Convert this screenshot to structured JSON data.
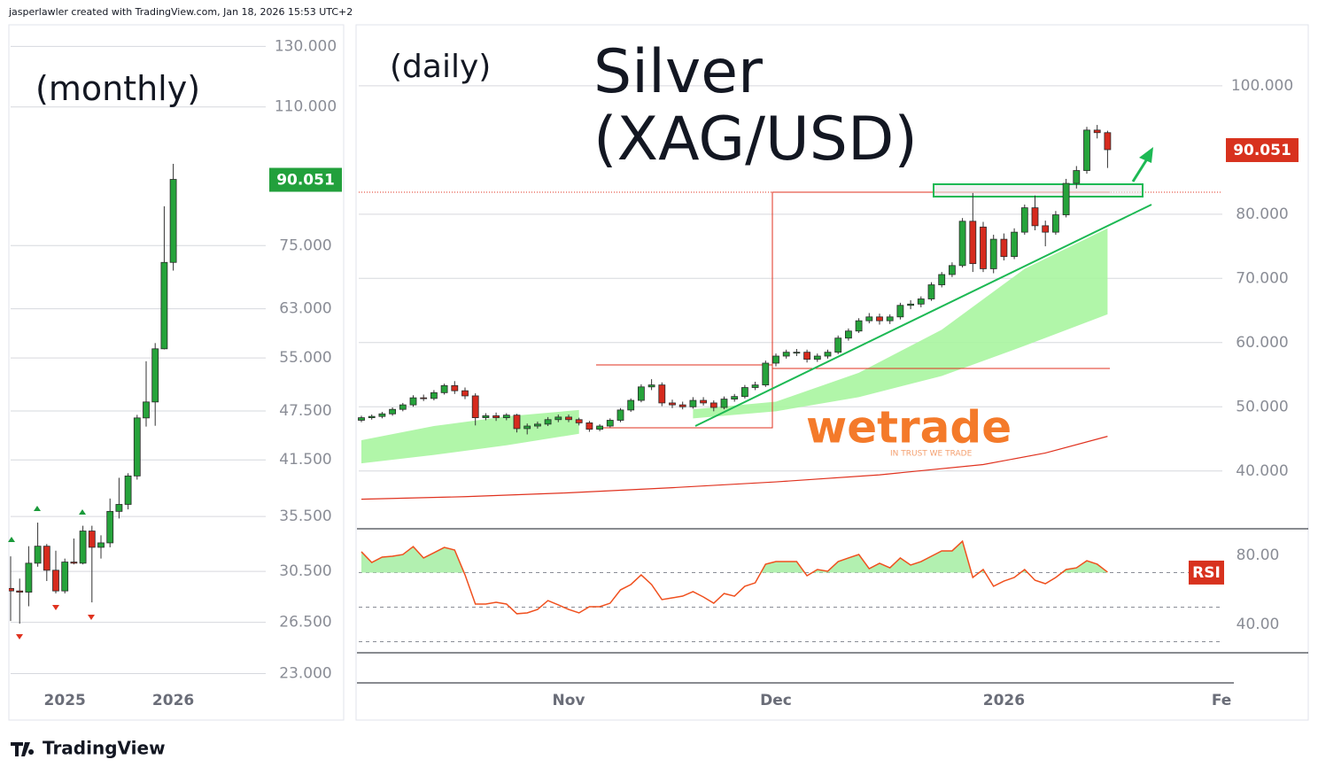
{
  "header": {
    "credit": "jasperlawler created with TradingView.com, Jan 18, 2026 15:53 UTC+2"
  },
  "footer": {
    "brand": "TradingView"
  },
  "watermark": {
    "name": "wetrade",
    "tagline": "IN TRUST WE TRADE"
  },
  "chart_data": [
    {
      "type": "candlestick",
      "title": "(monthly)",
      "log_scale": true,
      "grid": true,
      "up_color": "#26a33b",
      "down_color": "#d62b1e",
      "categories": [
        null,
        null,
        null,
        null,
        null,
        null,
        "2025",
        null,
        null,
        null,
        null,
        null,
        null,
        null,
        null,
        null,
        null,
        null,
        "2026"
      ],
      "open": [
        29.1,
        28.9,
        28.8,
        31.2,
        32.7,
        30.6,
        28.9,
        31.3,
        31.2,
        34.1,
        32.6,
        33.0,
        36.0,
        36.7,
        39.7,
        46.6,
        48.7,
        56.4,
        71.6
      ],
      "high": [
        31.8,
        29.9,
        32.7,
        34.9,
        32.9,
        32.3,
        31.6,
        33.4,
        34.6,
        34.6,
        33.7,
        37.3,
        39.5,
        40.0,
        47.0,
        54.5,
        57.3,
        83.6,
        94.0
      ],
      "low": [
        26.6,
        26.4,
        27.7,
        30.9,
        29.7,
        28.7,
        28.7,
        31.1,
        31.1,
        28.0,
        31.6,
        32.6,
        35.3,
        36.2,
        39.3,
        45.5,
        45.6,
        56.3,
        70.0
      ],
      "close": [
        28.9,
        28.8,
        31.2,
        32.7,
        30.6,
        28.9,
        31.3,
        31.2,
        34.1,
        32.6,
        33.0,
        36.0,
        36.7,
        39.7,
        46.6,
        48.7,
        56.4,
        71.6,
        90.051
      ],
      "ylim": [
        22.2,
        138
      ],
      "yticks": [
        {
          "value": 130,
          "label": "130.000"
        },
        {
          "value": 110,
          "label": "110.000"
        },
        {
          "value": 75,
          "label": "75.000"
        },
        {
          "value": 63,
          "label": "63.000"
        },
        {
          "value": 55,
          "label": "55.000"
        },
        {
          "value": 47.5,
          "label": "47.500"
        },
        {
          "value": 41.5,
          "label": "41.500"
        },
        {
          "value": 35.5,
          "label": "35.500"
        },
        {
          "value": 30.5,
          "label": "30.500"
        },
        {
          "value": 26.5,
          "label": "26.500"
        },
        {
          "value": 23,
          "label": "23.000"
        }
      ],
      "last_price": {
        "value": 90.051,
        "label": "90.051"
      },
      "last_price_color": "#22a03c"
    },
    {
      "type": "candlestick",
      "title": "Silver (XAG/USD)",
      "subtitle": "(daily)",
      "log_scale": false,
      "grid": true,
      "up_color": "#26a33b",
      "down_color": "#d62b1e",
      "categories": [
        null,
        null,
        null,
        null,
        null,
        null,
        null,
        null,
        null,
        null,
        null,
        null,
        null,
        null,
        null,
        null,
        null,
        null,
        null,
        null,
        "Nov",
        null,
        null,
        null,
        null,
        null,
        null,
        null,
        null,
        null,
        null,
        null,
        null,
        null,
        null,
        null,
        null,
        null,
        null,
        null,
        "Dec",
        null,
        null,
        null,
        null,
        null,
        null,
        null,
        null,
        null,
        null,
        null,
        null,
        null,
        null,
        null,
        null,
        null,
        null,
        null,
        null,
        null,
        "2026",
        null,
        null,
        null,
        null,
        null,
        null,
        null,
        null,
        null,
        null,
        null,
        null,
        null,
        null,
        null,
        null,
        null,
        null,
        null,
        null,
        "Fe"
      ],
      "open": [
        47.9,
        48.3,
        48.5,
        48.9,
        49.6,
        50.3,
        51.4,
        51.3,
        52.2,
        53.3,
        52.5,
        51.7,
        48.3,
        48.6,
        48.3,
        48.7,
        46.6,
        47.0,
        47.3,
        48.0,
        48.4,
        48.0,
        47.5,
        46.5,
        47.0,
        47.9,
        49.5,
        51.0,
        53.1,
        53.4,
        50.6,
        50.3,
        50.0,
        51.0,
        50.6,
        49.9,
        51.2,
        51.6,
        53.0,
        53.4,
        56.8,
        57.9,
        58.5,
        58.5,
        57.4,
        57.9,
        58.5,
        60.7,
        61.8,
        63.4,
        64.0,
        63.4,
        64.0,
        65.8,
        66.0,
        66.8,
        69.0,
        70.6,
        72.0,
        78.9,
        78.0,
        71.5,
        76.1,
        73.4,
        77.2,
        81.0,
        78.2,
        77.2,
        79.9,
        84.8,
        86.8,
        93.1,
        92.7,
        null,
        null,
        null,
        null,
        null,
        null,
        null,
        null,
        null,
        null,
        null
      ],
      "high": [
        48.6,
        48.8,
        49.2,
        49.9,
        50.6,
        51.8,
        51.9,
        52.6,
        53.6,
        54.0,
        53.0,
        52.1,
        49.0,
        49.1,
        49.0,
        48.9,
        47.4,
        47.7,
        48.4,
        48.8,
        48.8,
        48.3,
        47.8,
        47.3,
        48.2,
        49.8,
        51.3,
        53.5,
        54.3,
        53.8,
        51.1,
        50.8,
        51.5,
        51.5,
        51.0,
        51.6,
        52.0,
        53.4,
        53.9,
        57.2,
        58.3,
        58.9,
        59.0,
        58.9,
        58.3,
        58.9,
        61.1,
        62.2,
        63.8,
        64.6,
        64.5,
        64.4,
        66.2,
        66.6,
        67.2,
        69.4,
        71.0,
        72.5,
        79.4,
        83.3,
        78.8,
        76.8,
        77.0,
        77.8,
        81.5,
        82.9,
        79.0,
        80.5,
        85.5,
        87.5,
        93.6,
        93.9,
        93.0,
        null,
        null,
        null,
        null,
        null,
        null,
        null,
        null,
        null,
        null,
        null
      ],
      "low": [
        47.6,
        48.0,
        48.2,
        48.6,
        49.3,
        50.0,
        50.9,
        51.0,
        51.9,
        52.0,
        51.2,
        47.1,
        47.9,
        47.8,
        47.9,
        46.0,
        45.7,
        46.6,
        47.0,
        47.6,
        47.6,
        47.1,
        46.1,
        46.2,
        46.8,
        47.6,
        49.2,
        50.7,
        52.6,
        50.1,
        49.8,
        49.6,
        49.7,
        50.2,
        49.3,
        49.6,
        50.8,
        51.3,
        52.6,
        53.1,
        56.3,
        57.5,
        57.9,
        56.9,
        57.0,
        57.5,
        58.2,
        60.3,
        61.5,
        63.0,
        62.8,
        62.9,
        63.6,
        65.2,
        65.5,
        66.5,
        68.6,
        70.2,
        71.7,
        71.0,
        71.0,
        70.8,
        72.8,
        73.0,
        76.8,
        77.5,
        75.0,
        76.8,
        79.5,
        84.0,
        86.3,
        91.8,
        87.2,
        null,
        null,
        null,
        null,
        null,
        null,
        null,
        null,
        null,
        null,
        null
      ],
      "close": [
        48.3,
        48.5,
        48.9,
        49.6,
        50.3,
        51.4,
        51.3,
        52.2,
        53.3,
        52.5,
        51.7,
        48.3,
        48.6,
        48.3,
        48.7,
        46.6,
        47.0,
        47.3,
        48.0,
        48.4,
        48.0,
        47.5,
        46.5,
        47.0,
        47.9,
        49.5,
        51.0,
        53.1,
        53.4,
        50.6,
        50.3,
        50.0,
        51.0,
        50.6,
        49.9,
        51.2,
        51.6,
        53.0,
        53.4,
        56.8,
        57.9,
        58.5,
        58.5,
        57.4,
        57.9,
        58.5,
        60.7,
        61.8,
        63.4,
        64.0,
        63.4,
        64.0,
        65.8,
        66.0,
        66.8,
        69.0,
        70.6,
        72.0,
        78.9,
        72.3,
        71.5,
        76.1,
        73.4,
        77.2,
        81.0,
        78.2,
        77.2,
        79.9,
        84.8,
        86.8,
        93.1,
        92.7,
        90.051,
        null,
        null,
        null,
        null,
        null,
        null,
        null,
        null,
        null,
        null,
        null
      ],
      "ylim": [
        31,
        109.5
      ],
      "yticks": [
        {
          "value": 100,
          "label": "100.000"
        },
        {
          "value": 80,
          "label": "80.000"
        },
        {
          "value": 70,
          "label": "70.000"
        },
        {
          "value": 60,
          "label": "60.000"
        },
        {
          "value": 50,
          "label": "50.000"
        },
        {
          "value": 40,
          "label": "40.000"
        }
      ],
      "last_price": {
        "value": 90.051,
        "label": "90.051"
      },
      "last_price_color": "#d8321e",
      "moving_average": {
        "color": "#e0321f",
        "x": [
          0,
          10,
          20,
          30,
          40,
          50,
          60,
          66,
          72
        ],
        "values": [
          35.6,
          36.0,
          36.6,
          37.4,
          38.3,
          39.4,
          41.0,
          42.8,
          45.4
        ]
      },
      "band": {
        "color": "#a8f5a0",
        "x": [
          0,
          7,
          14,
          21,
          27,
          32,
          40,
          48,
          56,
          64,
          72
        ],
        "lower": [
          41.2,
          42.5,
          44.0,
          45.8,
          null,
          48.2,
          49.3,
          51.5,
          54.8,
          59.5,
          64.4
        ],
        "upper": [
          44.8,
          47.0,
          48.5,
          49.5,
          null,
          49.6,
          50.8,
          55.3,
          62.0,
          71.5,
          77.8
        ]
      },
      "rsi": {
        "title": "RSI",
        "color": "#f0501e",
        "fill_color": "#b2f0b0",
        "ylim": [
          23.6,
          95.4
        ],
        "yticks": [
          {
            "value": 80,
            "label": "80.00"
          },
          {
            "value": 40,
            "label": "40.00"
          }
        ],
        "levels": [
          70,
          50,
          30
        ],
        "values": [
          82.1,
          75.9,
          79.0,
          79.5,
          80.5,
          85.1,
          78.5,
          81.5,
          84.6,
          83.1,
          68.7,
          51.8,
          51.8,
          52.8,
          51.8,
          46.2,
          46.7,
          48.7,
          53.8,
          51.3,
          48.7,
          46.7,
          50.3,
          50.3,
          52.3,
          60.0,
          63.1,
          68.7,
          63.1,
          54.4,
          55.4,
          56.4,
          59.0,
          55.9,
          52.3,
          57.9,
          56.4,
          62.1,
          64.1,
          74.9,
          76.4,
          76.4,
          76.4,
          68.2,
          71.8,
          70.8,
          76.4,
          78.5,
          80.5,
          72.3,
          75.4,
          72.8,
          78.5,
          74.4,
          76.4,
          79.5,
          82.6,
          82.6,
          88.2,
          67.2,
          71.8,
          62.1,
          65.1,
          67.2,
          71.8,
          65.6,
          63.6,
          67.2,
          71.8,
          72.8,
          76.9,
          74.9,
          70.3,
          null,
          null,
          null,
          null,
          null,
          null,
          null,
          null,
          null,
          null,
          null
        ]
      }
    }
  ]
}
